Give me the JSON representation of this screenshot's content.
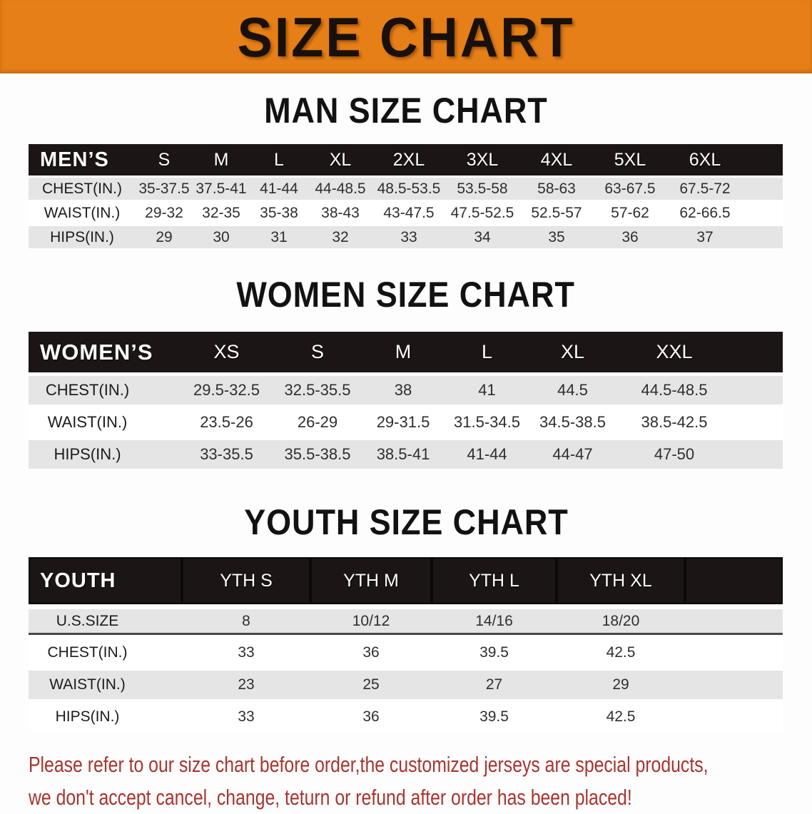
{
  "banner": {
    "title": "SIZE CHART"
  },
  "colors": {
    "banner_bg": "#E67F17",
    "bar_bg": "#1B1515",
    "row_alt": "#E5E5E5",
    "footer_red": "#A8352E"
  },
  "sections": [
    {
      "id": "men",
      "heading": "MAN SIZE CHART",
      "corner_label": "MEN’S",
      "columns": [
        "S",
        "M",
        "L",
        "XL",
        "2XL",
        "3XL",
        "4XL",
        "5XL",
        "6XL"
      ],
      "rows": [
        {
          "label": "CHEST(IN.)",
          "values": [
            "35-37.5",
            "37.5-41",
            "41-44",
            "44-48.5",
            "48.5-53.5",
            "53.5-58",
            "58-63",
            "63-67.5",
            "67.5-72"
          ]
        },
        {
          "label": "WAIST(IN.)",
          "values": [
            "29-32",
            "32-35",
            "35-38",
            "38-43",
            "43-47.5",
            "47.5-52.5",
            "52.5-57",
            "57-62",
            "62-66.5"
          ]
        },
        {
          "label": "HIPS(IN.)",
          "values": [
            "29",
            "30",
            "31",
            "32",
            "33",
            "34",
            "35",
            "36",
            "37"
          ]
        }
      ]
    },
    {
      "id": "women",
      "heading": "WOMEN SIZE CHART",
      "corner_label": "WOMEN’S",
      "columns": [
        "XS",
        "S",
        "M",
        "L",
        "XL",
        "XXL"
      ],
      "rows": [
        {
          "label": "CHEST(IN.)",
          "values": [
            "29.5-32.5",
            "32.5-35.5",
            "38",
            "41",
            "44.5",
            "44.5-48.5"
          ]
        },
        {
          "label": "WAIST(IN.)",
          "values": [
            "23.5-26",
            "26-29",
            "29-31.5",
            "31.5-34.5",
            "34.5-38.5",
            "38.5-42.5"
          ]
        },
        {
          "label": "HIPS(IN.)",
          "values": [
            "33-35.5",
            "35.5-38.5",
            "38.5-41",
            "41-44",
            "44-47",
            "47-50"
          ]
        }
      ]
    },
    {
      "id": "youth",
      "heading": "YOUTH SIZE CHART",
      "corner_label": "YOUTH",
      "columns": [
        "YTH S",
        "YTH M",
        "YTH L",
        "YTH XL"
      ],
      "rows": [
        {
          "label": "U.S.SIZE",
          "values": [
            "8",
            "10/12",
            "14/16",
            "18/20"
          ]
        },
        {
          "label": "CHEST(IN.)",
          "values": [
            "33",
            "36",
            "39.5",
            "42.5"
          ]
        },
        {
          "label": "WAIST(IN.)",
          "values": [
            "23",
            "25",
            "27",
            "29"
          ]
        },
        {
          "label": "HIPS(IN.)",
          "values": [
            "33",
            "36",
            "39.5",
            "42.5"
          ]
        }
      ]
    }
  ],
  "footer": {
    "lines": [
      "Please refer to our size chart before order,the customized jerseys are special products,",
      "we don't accept cancel, change, teturn or refund after order has been placed!"
    ]
  }
}
